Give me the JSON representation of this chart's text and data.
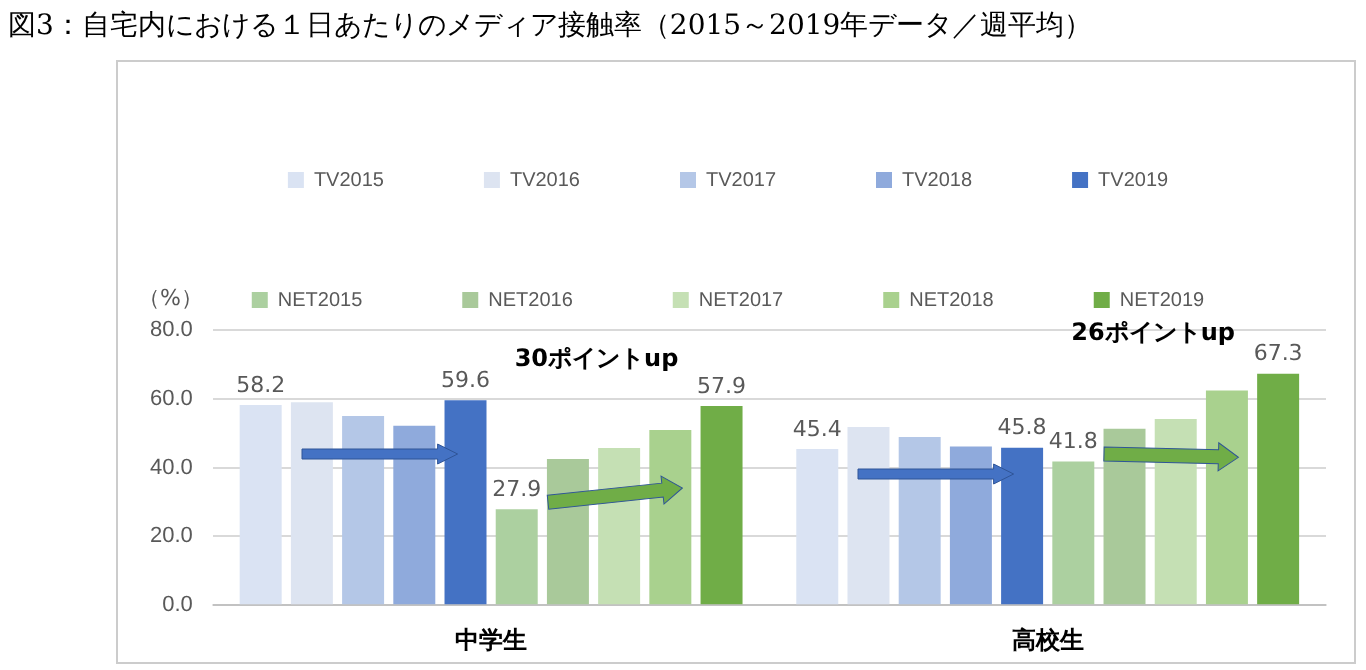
{
  "chart_data": {
    "type": "bar",
    "title": "図3：自宅内における１日あたりのメディア接触率（2015～2019年データ／週平均）",
    "ylabel": "（%）",
    "categories": [
      "中学生",
      "高校生"
    ],
    "series": [
      {
        "name": "TV2015",
        "color": "#dae3f3",
        "values": [
          58.2,
          45.4
        ],
        "value_labels": [
          "58.2",
          "45.4"
        ]
      },
      {
        "name": "TV2016",
        "color": "#dde4f1",
        "values": [
          59.0,
          51.8
        ]
      },
      {
        "name": "TV2017",
        "color": "#b4c7e7",
        "values": [
          55.0,
          48.9
        ]
      },
      {
        "name": "TV2018",
        "color": "#8faadc",
        "values": [
          52.2,
          46.1
        ]
      },
      {
        "name": "TV2019",
        "color": "#4472c4",
        "values": [
          59.6,
          45.8
        ],
        "value_labels": [
          "59.6",
          "45.8"
        ]
      },
      {
        "name": "NET2015",
        "color": "#acd0a0",
        "values": [
          27.9,
          41.8
        ],
        "value_labels": [
          "27.9",
          "41.8"
        ]
      },
      {
        "name": "NET2016",
        "color": "#a9c99a",
        "values": [
          42.5,
          51.3
        ]
      },
      {
        "name": "NET2017",
        "color": "#c5e0b4",
        "values": [
          45.7,
          54.1
        ]
      },
      {
        "name": "NET2018",
        "color": "#a9d18e",
        "values": [
          50.9,
          62.4
        ]
      },
      {
        "name": "NET2019",
        "color": "#70ad47",
        "values": [
          57.9,
          67.3
        ],
        "value_labels": [
          "57.9",
          "67.3"
        ]
      }
    ],
    "ylim": [
      0,
      80
    ],
    "yticks": [
      {
        "value": 0,
        "label": "0.0"
      },
      {
        "value": 20,
        "label": "20.0"
      },
      {
        "value": 40,
        "label": "40.0"
      },
      {
        "value": 60,
        "label": "60.0"
      },
      {
        "value": 80,
        "label": "80.0"
      }
    ],
    "grid": "y",
    "legend": "top",
    "annotations": [
      "30ポイントup",
      "26ポイントup"
    ]
  }
}
